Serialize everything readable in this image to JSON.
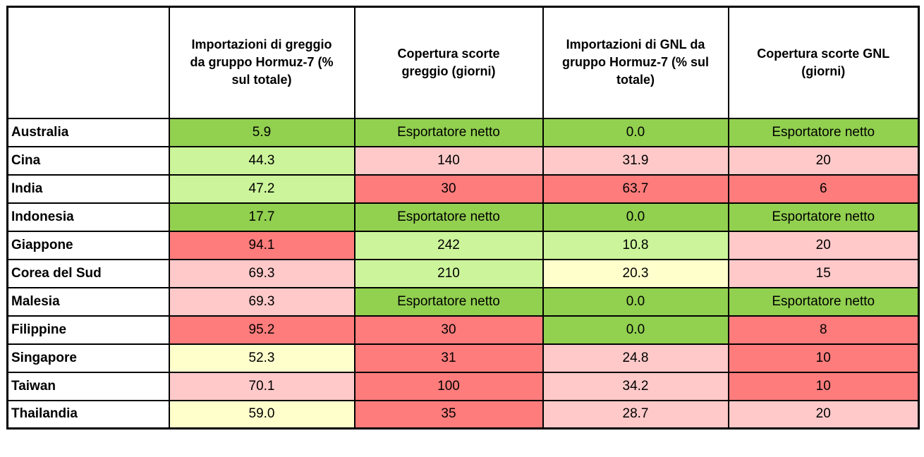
{
  "colors": {
    "green": "#92D050",
    "light_green": "#CCF49B",
    "yellow": "#FFFFCC",
    "pink": "#FFC9C9",
    "red": "#FF7C7C",
    "border": "#000000",
    "header_bg": "#FFFFFF"
  },
  "chart_data": {
    "type": "table",
    "title": "",
    "corner_label": "",
    "columns": [
      "Importazioni di greggio da gruppo Hormuz-7 (% sul totale)",
      "Copertura scorte greggio (giorni)",
      "Importazioni di GNL da gruppo Hormuz-7 (% sul totale)",
      "Copertura scorte GNL (giorni)"
    ],
    "rows": [
      {
        "country": "Australia",
        "values": [
          "5.9",
          "Esportatore netto",
          "0.0",
          "Esportatore netto"
        ],
        "levels": [
          "green",
          "green",
          "green",
          "green"
        ]
      },
      {
        "country": "Cina",
        "values": [
          "44.3",
          "140",
          "31.9",
          "20"
        ],
        "levels": [
          "light_green",
          "pink",
          "pink",
          "pink"
        ]
      },
      {
        "country": "India",
        "values": [
          "47.2",
          "30",
          "63.7",
          "6"
        ],
        "levels": [
          "light_green",
          "red",
          "red",
          "red"
        ]
      },
      {
        "country": "Indonesia",
        "values": [
          "17.7",
          "Esportatore netto",
          "0.0",
          "Esportatore netto"
        ],
        "levels": [
          "green",
          "green",
          "green",
          "green"
        ]
      },
      {
        "country": "Giappone",
        "values": [
          "94.1",
          "242",
          "10.8",
          "20"
        ],
        "levels": [
          "red",
          "light_green",
          "light_green",
          "pink"
        ]
      },
      {
        "country": "Corea del Sud",
        "values": [
          "69.3",
          "210",
          "20.3",
          "15"
        ],
        "levels": [
          "pink",
          "light_green",
          "yellow",
          "pink"
        ]
      },
      {
        "country": "Malesia",
        "values": [
          "69.3",
          "Esportatore netto",
          "0.0",
          "Esportatore netto"
        ],
        "levels": [
          "pink",
          "green",
          "green",
          "green"
        ]
      },
      {
        "country": "Filippine",
        "values": [
          "95.2",
          "30",
          "0.0",
          "8"
        ],
        "levels": [
          "red",
          "red",
          "green",
          "red"
        ]
      },
      {
        "country": "Singapore",
        "values": [
          "52.3",
          "31",
          "24.8",
          "10"
        ],
        "levels": [
          "yellow",
          "red",
          "pink",
          "red"
        ]
      },
      {
        "country": "Taiwan",
        "values": [
          "70.1",
          "100",
          "34.2",
          "10"
        ],
        "levels": [
          "pink",
          "red",
          "pink",
          "red"
        ]
      },
      {
        "country": "Thailandia",
        "values": [
          "59.0",
          "35",
          "28.7",
          "20"
        ],
        "levels": [
          "yellow",
          "red",
          "pink",
          "pink"
        ]
      }
    ]
  }
}
